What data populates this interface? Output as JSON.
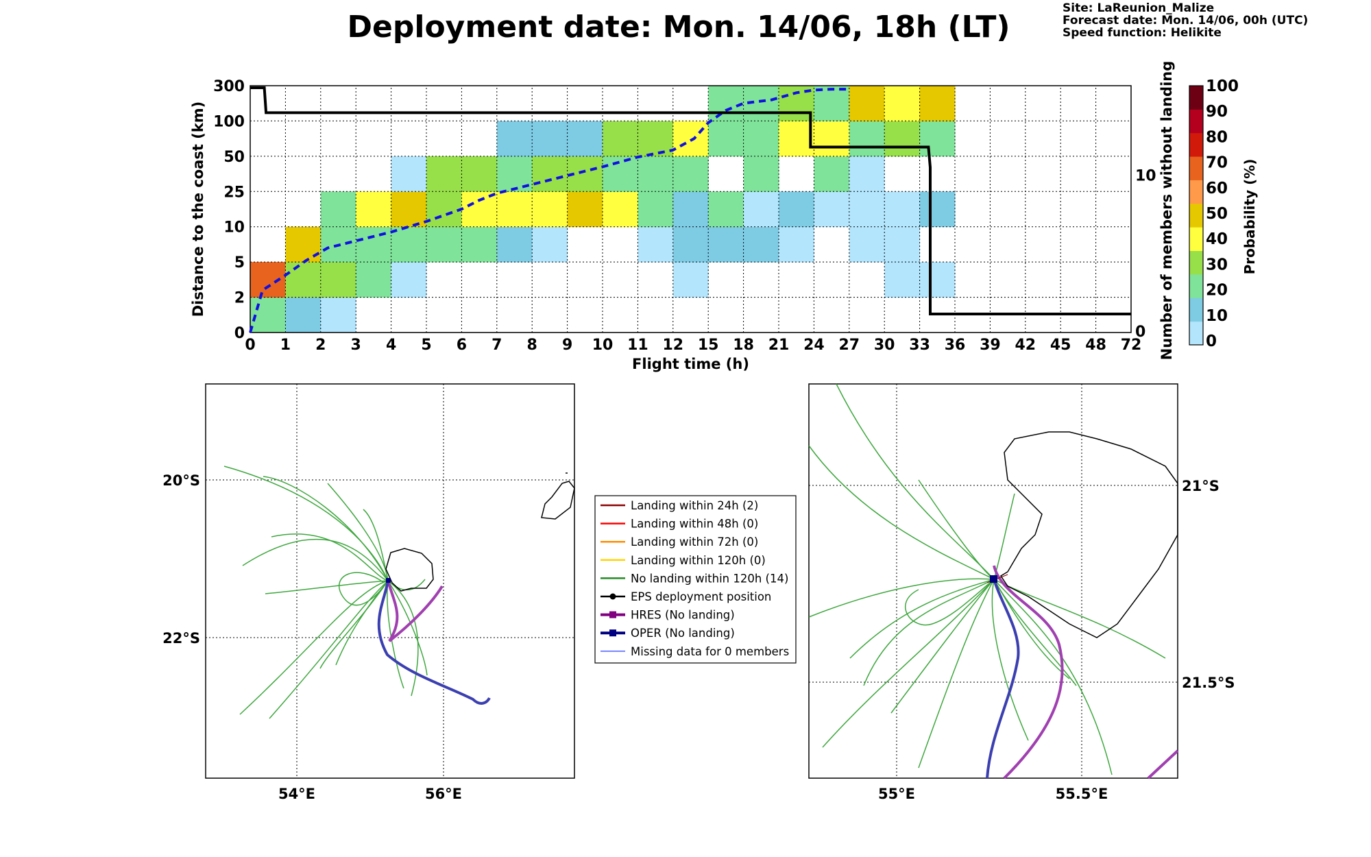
{
  "title": "Deployment date: Mon. 14/06, 18h (LT)",
  "meta": {
    "site": "Site: LaReunion_Malize",
    "forecast": "Forecast date: Mon. 14/06, 00h (UTC)",
    "speed": "Speed function: Helikite"
  },
  "chart_data": [
    {
      "type": "heatmap",
      "xlabel": "Flight time (h)",
      "ylabel": "Distance to the coast (km)",
      "y2label": "Number of members without landing",
      "x_ticks": [
        "0",
        "1",
        "2",
        "3",
        "4",
        "5",
        "6",
        "7",
        "8",
        "9",
        "10",
        "11",
        "12",
        "15",
        "18",
        "21",
        "24",
        "27",
        "30",
        "33",
        "36",
        "39",
        "42",
        "45",
        "48",
        "72"
      ],
      "y_ticks": [
        "0",
        "2",
        "5",
        "10",
        "25",
        "50",
        "100",
        "300"
      ],
      "y2_ticks": [
        "0",
        "10"
      ],
      "y2lim": [
        0,
        15.6
      ],
      "grid": true,
      "colorbar": {
        "label": "Probability (%)",
        "ticks": [
          "0",
          "10",
          "20",
          "30",
          "40",
          "50",
          "60",
          "70",
          "80",
          "90",
          "100"
        ],
        "colors": [
          "#b3e5fc",
          "#7ecbe4",
          "#7fe39a",
          "#97e04a",
          "#ffff40",
          "#e6c800",
          "#ff9a4a",
          "#e8641e",
          "#d21a0a",
          "#b4001e",
          "#6e0014"
        ]
      },
      "cells": [
        {
          "x": 0,
          "y": 0,
          "c": 2
        },
        {
          "x": 0,
          "y": 1,
          "c": 7
        },
        {
          "x": 1,
          "y": 0,
          "c": 1
        },
        {
          "x": 1,
          "y": 1,
          "c": 3
        },
        {
          "x": 1,
          "y": 2,
          "c": 5
        },
        {
          "x": 2,
          "y": 0,
          "c": 0
        },
        {
          "x": 2,
          "y": 1,
          "c": 3
        },
        {
          "x": 2,
          "y": 2,
          "c": 2
        },
        {
          "x": 2,
          "y": 3,
          "c": 2
        },
        {
          "x": 3,
          "y": 1,
          "c": 2
        },
        {
          "x": 3,
          "y": 2,
          "c": 2
        },
        {
          "x": 3,
          "y": 3,
          "c": 4
        },
        {
          "x": 4,
          "y": 1,
          "c": 0
        },
        {
          "x": 4,
          "y": 2,
          "c": 2
        },
        {
          "x": 4,
          "y": 3,
          "c": 5
        },
        {
          "x": 4,
          "y": 4,
          "c": 0
        },
        {
          "x": 5,
          "y": 2,
          "c": 2
        },
        {
          "x": 5,
          "y": 3,
          "c": 3
        },
        {
          "x": 5,
          "y": 4,
          "c": 3
        },
        {
          "x": 6,
          "y": 2,
          "c": 2
        },
        {
          "x": 6,
          "y": 3,
          "c": 4
        },
        {
          "x": 6,
          "y": 4,
          "c": 3
        },
        {
          "x": 7,
          "y": 2,
          "c": 1
        },
        {
          "x": 7,
          "y": 3,
          "c": 4
        },
        {
          "x": 7,
          "y": 4,
          "c": 2
        },
        {
          "x": 7,
          "y": 5,
          "c": 1
        },
        {
          "x": 8,
          "y": 2,
          "c": 0
        },
        {
          "x": 8,
          "y": 3,
          "c": 4
        },
        {
          "x": 8,
          "y": 4,
          "c": 3
        },
        {
          "x": 8,
          "y": 5,
          "c": 1
        },
        {
          "x": 9,
          "y": 3,
          "c": 5
        },
        {
          "x": 9,
          "y": 4,
          "c": 3
        },
        {
          "x": 9,
          "y": 5,
          "c": 1
        },
        {
          "x": 10,
          "y": 3,
          "c": 4
        },
        {
          "x": 10,
          "y": 4,
          "c": 2
        },
        {
          "x": 10,
          "y": 5,
          "c": 3
        },
        {
          "x": 11,
          "y": 2,
          "c": 0
        },
        {
          "x": 11,
          "y": 3,
          "c": 2
        },
        {
          "x": 11,
          "y": 4,
          "c": 2
        },
        {
          "x": 11,
          "y": 5,
          "c": 3
        },
        {
          "x": 12,
          "y": 1,
          "c": 0
        },
        {
          "x": 12,
          "y": 2,
          "c": 1
        },
        {
          "x": 12,
          "y": 3,
          "c": 1
        },
        {
          "x": 12,
          "y": 4,
          "c": 2
        },
        {
          "x": 12,
          "y": 5,
          "c": 4
        },
        {
          "x": 13,
          "y": 2,
          "c": 1
        },
        {
          "x": 13,
          "y": 3,
          "c": 2
        },
        {
          "x": 13,
          "y": 5,
          "c": 2
        },
        {
          "x": 13,
          "y": 6,
          "c": 2
        },
        {
          "x": 14,
          "y": 2,
          "c": 1
        },
        {
          "x": 14,
          "y": 3,
          "c": 0
        },
        {
          "x": 14,
          "y": 4,
          "c": 2
        },
        {
          "x": 14,
          "y": 5,
          "c": 2
        },
        {
          "x": 14,
          "y": 6,
          "c": 2
        },
        {
          "x": 15,
          "y": 2,
          "c": 0
        },
        {
          "x": 15,
          "y": 3,
          "c": 1
        },
        {
          "x": 15,
          "y": 5,
          "c": 4
        },
        {
          "x": 15,
          "y": 6,
          "c": 3
        },
        {
          "x": 16,
          "y": 3,
          "c": 0
        },
        {
          "x": 16,
          "y": 4,
          "c": 2
        },
        {
          "x": 16,
          "y": 5,
          "c": 4
        },
        {
          "x": 16,
          "y": 6,
          "c": 2
        },
        {
          "x": 17,
          "y": 2,
          "c": 0
        },
        {
          "x": 17,
          "y": 3,
          "c": 0
        },
        {
          "x": 17,
          "y": 4,
          "c": 0
        },
        {
          "x": 17,
          "y": 5,
          "c": 2
        },
        {
          "x": 17,
          "y": 6,
          "c": 5
        },
        {
          "x": 18,
          "y": 1,
          "c": 0
        },
        {
          "x": 18,
          "y": 2,
          "c": 0
        },
        {
          "x": 18,
          "y": 3,
          "c": 0
        },
        {
          "x": 18,
          "y": 5,
          "c": 3
        },
        {
          "x": 18,
          "y": 6,
          "c": 4
        },
        {
          "x": 19,
          "y": 1,
          "c": 0
        },
        {
          "x": 19,
          "y": 3,
          "c": 1
        },
        {
          "x": 19,
          "y": 5,
          "c": 2
        },
        {
          "x": 19,
          "y": 6,
          "c": 5
        }
      ],
      "median_distance": {
        "x": [
          0,
          0.35,
          1,
          1.6,
          2.2,
          3,
          4,
          5,
          6,
          6.5,
          7,
          8,
          9,
          10,
          11,
          12,
          12.6,
          13,
          13.5,
          14,
          14.8,
          15.5,
          16,
          16.5,
          17
        ],
        "y": [
          0,
          4.8,
          6.5,
          8.2,
          9.6,
          10.4,
          11.4,
          12.6,
          14,
          15,
          15.8,
          16.8,
          17.8,
          18.8,
          19.9,
          20.7,
          22,
          23.8,
          25.2,
          26,
          26.4,
          27.2,
          27.5,
          27.6,
          27.6
        ]
      },
      "members_without_landing": {
        "x": [
          0,
          0.4,
          0.45,
          15.9,
          15.9,
          19.25,
          19.3,
          19.3,
          19.35,
          25
        ],
        "y": [
          15.6,
          15.6,
          14,
          14,
          11.8,
          11.8,
          10.5,
          1.1,
          1.1,
          1.1
        ]
      }
    },
    {
      "type": "map",
      "x_ticks": [
        "54°E",
        "56°E"
      ],
      "y_ticks": [
        "20°S",
        "22°S"
      ]
    },
    {
      "type": "map",
      "x_ticks": [
        "55°E",
        "55.5°E"
      ],
      "y_ticks": [
        "21°S",
        "21.5°S"
      ]
    }
  ],
  "legend": {
    "items": [
      {
        "label": "Landing within 24h (2)",
        "color": "#8b0000",
        "style": "line"
      },
      {
        "label": "Landing within 48h (0)",
        "color": "#ff0000",
        "style": "line"
      },
      {
        "label": "Landing within 72h (0)",
        "color": "#ff8c00",
        "style": "line"
      },
      {
        "label": "Landing within 120h (0)",
        "color": "#ffd700",
        "style": "line"
      },
      {
        "label": "No landing within 120h (14)",
        "color": "#228b22",
        "style": "line"
      },
      {
        "label": "EPS deployment position",
        "color": "#000000",
        "style": "dot"
      },
      {
        "label": "HRES (No landing)",
        "color": "#800080",
        "style": "square"
      },
      {
        "label": "OPER (No landing)",
        "color": "#000080",
        "style": "square"
      },
      {
        "label": "Missing data for 0 members",
        "color": "#4b5cff",
        "style": "thin"
      }
    ]
  }
}
